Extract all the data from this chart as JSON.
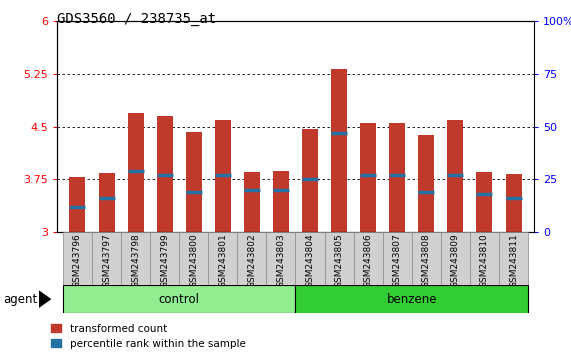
{
  "title": "GDS3560 / 238735_at",
  "samples": [
    "GSM243796",
    "GSM243797",
    "GSM243798",
    "GSM243799",
    "GSM243800",
    "GSM243801",
    "GSM243802",
    "GSM243803",
    "GSM243804",
    "GSM243805",
    "GSM243806",
    "GSM243807",
    "GSM243808",
    "GSM243809",
    "GSM243810",
    "GSM243811"
  ],
  "transformed_counts": [
    3.78,
    3.84,
    4.7,
    4.65,
    4.42,
    4.6,
    3.85,
    3.87,
    4.47,
    5.32,
    4.55,
    4.55,
    4.38,
    4.6,
    3.85,
    3.82
  ],
  "percentile_ranks": [
    12,
    16,
    29,
    27,
    19,
    27,
    20,
    20,
    25,
    47,
    27,
    27,
    19,
    27,
    18,
    16
  ],
  "ylim_left": [
    3,
    6
  ],
  "ylim_right": [
    0,
    100
  ],
  "yticks_left": [
    3,
    3.75,
    4.5,
    5.25,
    6
  ],
  "yticks_right": [
    0,
    25,
    50,
    75,
    100
  ],
  "bar_color": "#C0392B",
  "marker_color": "#2471A3",
  "bg_color": "#FFFFFF",
  "control_color": "#90EE90",
  "benzene_color": "#32CD32",
  "control_count": 8,
  "benzene_count": 8,
  "bar_width": 0.55,
  "tick_fontsize": 8,
  "label_fontsize": 6.5,
  "title_fontsize": 10
}
